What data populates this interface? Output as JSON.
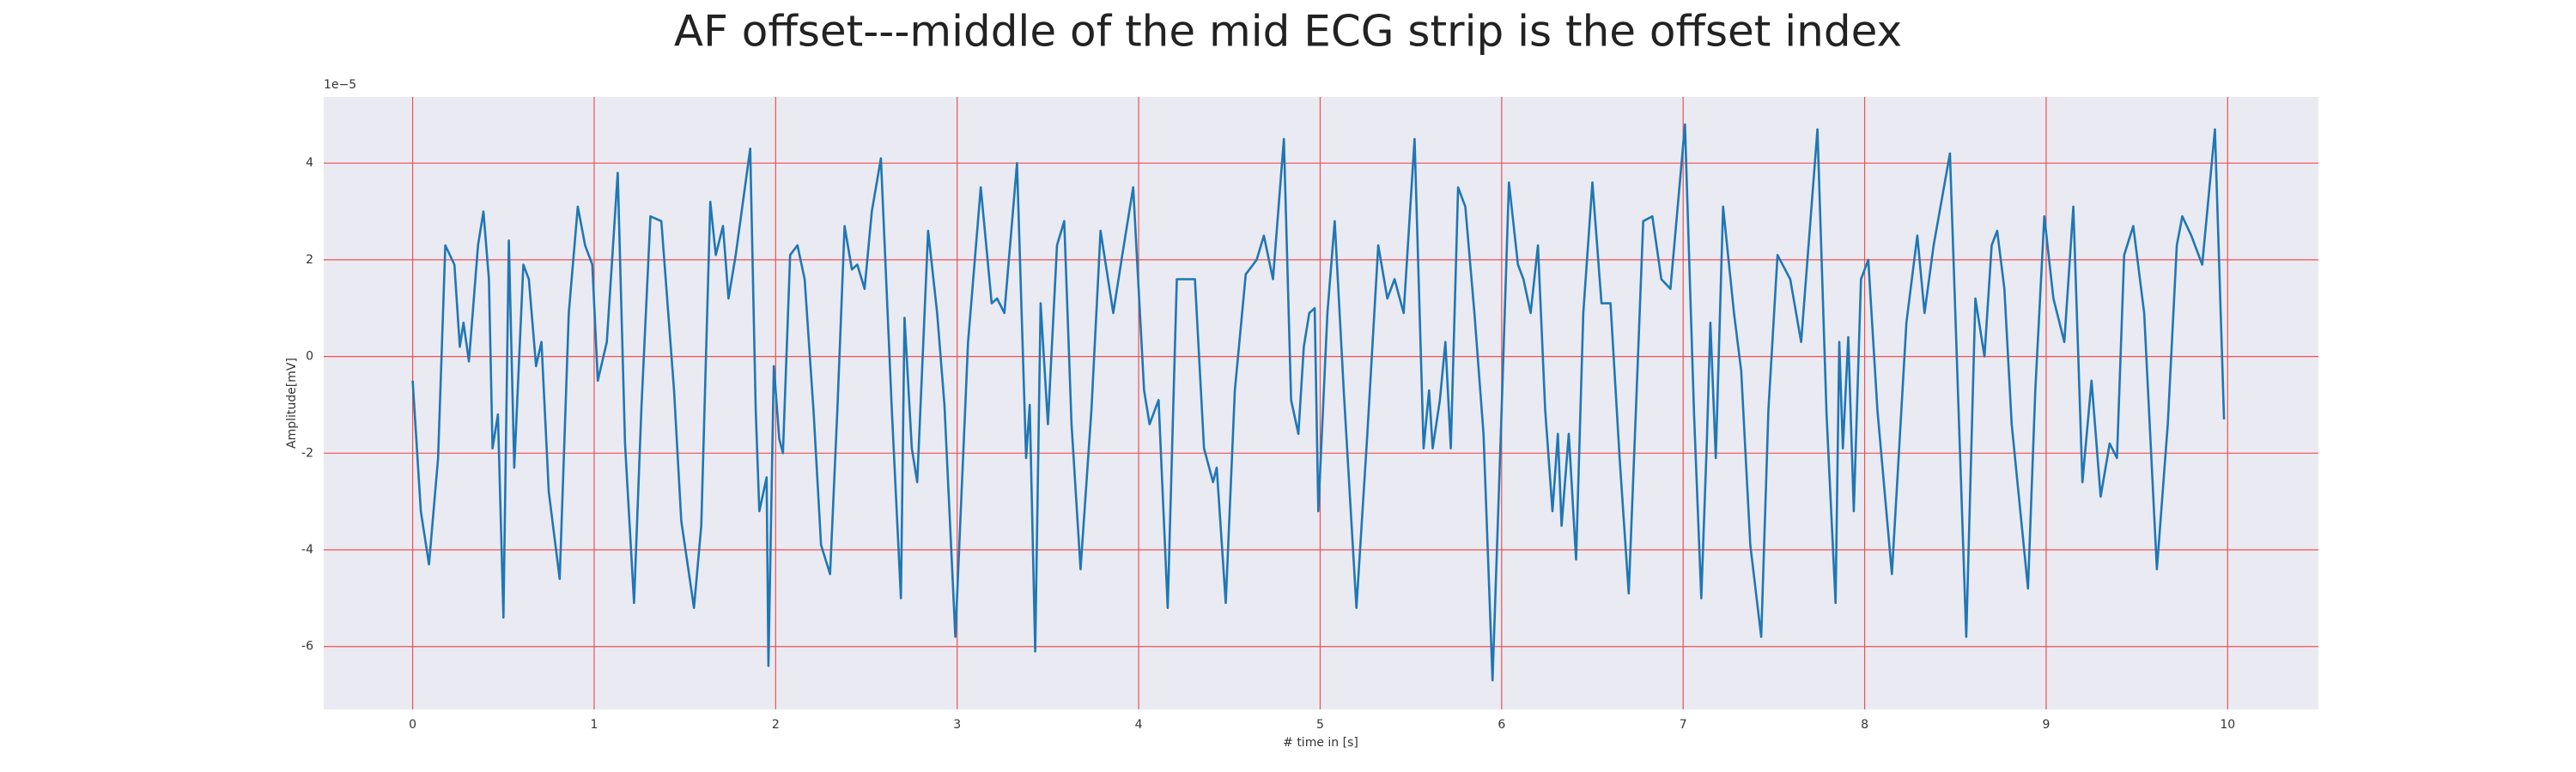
{
  "chart_data": {
    "type": "line",
    "title": "AF offset---middle of the mid ECG strip is the offset index",
    "xlabel": "# time in [s]",
    "ylabel": "Amplitude[mV]",
    "y_offset_label": "1e−5",
    "color": "#1f77b4",
    "grid": true,
    "grid_color": "#f05050",
    "background": "#eaeaf2",
    "xlim": [
      -0.49,
      10.5
    ],
    "xticks": [
      0,
      1,
      2,
      3,
      4,
      5,
      6,
      7,
      8,
      9,
      10
    ],
    "ylim": [
      -7.3,
      5.37
    ],
    "yticks": [
      -6,
      -4,
      -2,
      0,
      2,
      4
    ],
    "x": [
      0,
      0.045,
      0.09,
      0.14,
      0.18,
      0.23,
      0.26,
      0.28,
      0.31,
      0.36,
      0.39,
      0.42,
      0.44,
      0.47,
      0.5,
      0.53,
      0.56,
      0.61,
      0.64,
      0.68,
      0.71,
      0.75,
      0.81,
      0.86,
      0.91,
      0.95,
      0.99,
      1.02,
      1.07,
      1.13,
      1.17,
      1.22,
      1.26,
      1.31,
      1.37,
      1.44,
      1.48,
      1.55,
      1.59,
      1.64,
      1.67,
      1.71,
      1.74,
      1.78,
      1.86,
      1.89,
      1.91,
      1.95,
      1.96,
      1.99,
      2.02,
      2.04,
      2.08,
      2.12,
      2.16,
      2.21,
      2.25,
      2.3,
      2.34,
      2.38,
      2.42,
      2.45,
      2.49,
      2.53,
      2.58,
      2.64,
      2.69,
      2.71,
      2.75,
      2.78,
      2.84,
      2.89,
      2.93,
      2.99,
      3.06,
      3.13,
      3.19,
      3.22,
      3.26,
      3.33,
      3.38,
      3.4,
      3.43,
      3.46,
      3.5,
      3.55,
      3.59,
      3.63,
      3.68,
      3.74,
      3.79,
      3.86,
      3.91,
      3.97,
      4.03,
      4.06,
      4.11,
      4.16,
      4.21,
      4.26,
      4.31,
      4.36,
      4.41,
      4.43,
      4.48,
      4.53,
      4.59,
      4.65,
      4.69,
      4.74,
      4.8,
      4.84,
      4.88,
      4.91,
      4.94,
      4.97,
      4.99,
      5.04,
      5.08,
      5.13,
      5.2,
      5.26,
      5.32,
      5.37,
      5.41,
      5.46,
      5.52,
      5.57,
      5.6,
      5.62,
      5.66,
      5.69,
      5.72,
      5.76,
      5.8,
      5.85,
      5.9,
      5.95,
      6.0,
      6.04,
      6.09,
      6.12,
      6.16,
      6.2,
      6.24,
      6.28,
      6.31,
      6.33,
      6.37,
      6.41,
      6.45,
      6.5,
      6.55,
      6.6,
      6.65,
      6.7,
      6.74,
      6.78,
      6.83,
      6.88,
      6.93,
      7.01,
      7.06,
      7.1,
      7.13,
      7.15,
      7.18,
      7.22,
      7.28,
      7.32,
      7.37,
      7.43,
      7.47,
      7.52,
      7.59,
      7.65,
      7.74,
      7.79,
      7.84,
      7.86,
      7.88,
      7.91,
      7.94,
      7.98,
      8.02,
      8.07,
      8.15,
      8.23,
      8.29,
      8.33,
      8.38,
      8.47,
      8.52,
      8.56,
      8.61,
      8.66,
      8.7,
      8.73,
      8.77,
      8.81,
      8.9,
      8.94,
      8.99,
      9.04,
      9.1,
      9.15,
      9.2,
      9.25,
      9.3,
      9.35,
      9.39,
      9.43,
      9.48,
      9.54,
      9.61,
      9.67,
      9.72,
      9.75,
      9.8,
      9.86,
      9.93,
      9.98
    ],
    "values": [
      -0.5,
      -3.2,
      -4.3,
      -2.1,
      2.3,
      1.9,
      0.2,
      0.7,
      -0.1,
      2.3,
      3.0,
      1.6,
      -1.9,
      -1.2,
      -5.4,
      2.4,
      -2.3,
      1.9,
      1.6,
      -0.2,
      0.3,
      -2.8,
      -4.6,
      0.9,
      3.1,
      2.3,
      1.9,
      -0.5,
      0.3,
      3.8,
      -1.8,
      -5.1,
      -1.1,
      2.9,
      2.8,
      -0.7,
      -3.4,
      -5.2,
      -3.5,
      3.2,
      2.1,
      2.7,
      1.2,
      2.1,
      4.3,
      -1.1,
      -3.2,
      -2.5,
      -6.4,
      -0.2,
      -1.7,
      -2.0,
      2.1,
      2.3,
      1.6,
      -1.2,
      -3.9,
      -4.5,
      -1.1,
      2.7,
      1.8,
      1.9,
      1.4,
      3.0,
      4.1,
      -1.1,
      -5.0,
      0.8,
      -1.9,
      -2.6,
      2.6,
      0.9,
      -1.0,
      -5.8,
      0.3,
      3.5,
      1.1,
      1.2,
      0.9,
      4.0,
      -2.1,
      -1.0,
      -6.1,
      1.1,
      -1.4,
      2.3,
      2.8,
      -1.4,
      -4.4,
      -1.1,
      2.6,
      0.9,
      2.1,
      3.5,
      -0.7,
      -1.4,
      -0.9,
      -5.2,
      1.6,
      1.6,
      1.6,
      -1.9,
      -2.6,
      -2.3,
      -5.1,
      -0.7,
      1.7,
      2.0,
      2.5,
      1.6,
      4.5,
      -0.9,
      -1.6,
      0.2,
      0.9,
      1.0,
      -3.2,
      0.9,
      2.8,
      -0.7,
      -5.2,
      -1.6,
      2.3,
      1.2,
      1.6,
      0.9,
      4.5,
      -1.9,
      -0.7,
      -1.9,
      -0.9,
      0.3,
      -1.9,
      3.5,
      3.1,
      0.9,
      -1.6,
      -6.7,
      -1.1,
      3.6,
      1.9,
      1.6,
      0.9,
      2.3,
      -1.1,
      -3.2,
      -1.6,
      -3.5,
      -1.6,
      -4.2,
      0.9,
      3.6,
      1.1,
      1.1,
      -2.1,
      -4.9,
      -1.1,
      2.8,
      2.9,
      1.6,
      1.4,
      4.8,
      -1.2,
      -5.0,
      -1.8,
      0.7,
      -2.1,
      3.1,
      0.9,
      -0.3,
      -3.9,
      -5.8,
      -1.1,
      2.1,
      1.6,
      0.3,
      4.7,
      -1.2,
      -5.1,
      0.3,
      -1.9,
      0.4,
      -3.2,
      1.6,
      2.0,
      -1.1,
      -4.5,
      0.7,
      2.5,
      0.9,
      2.3,
      4.2,
      -1.4,
      -5.8,
      1.2,
      0.0,
      2.3,
      2.6,
      1.4,
      -1.4,
      -4.8,
      -0.7,
      2.9,
      1.2,
      0.3,
      3.1,
      -2.6,
      -0.5,
      -2.9,
      -1.8,
      -2.1,
      2.1,
      2.7,
      0.9,
      -4.4,
      -1.4,
      2.3,
      2.9,
      2.5,
      1.9,
      4.7,
      -1.3
    ]
  }
}
